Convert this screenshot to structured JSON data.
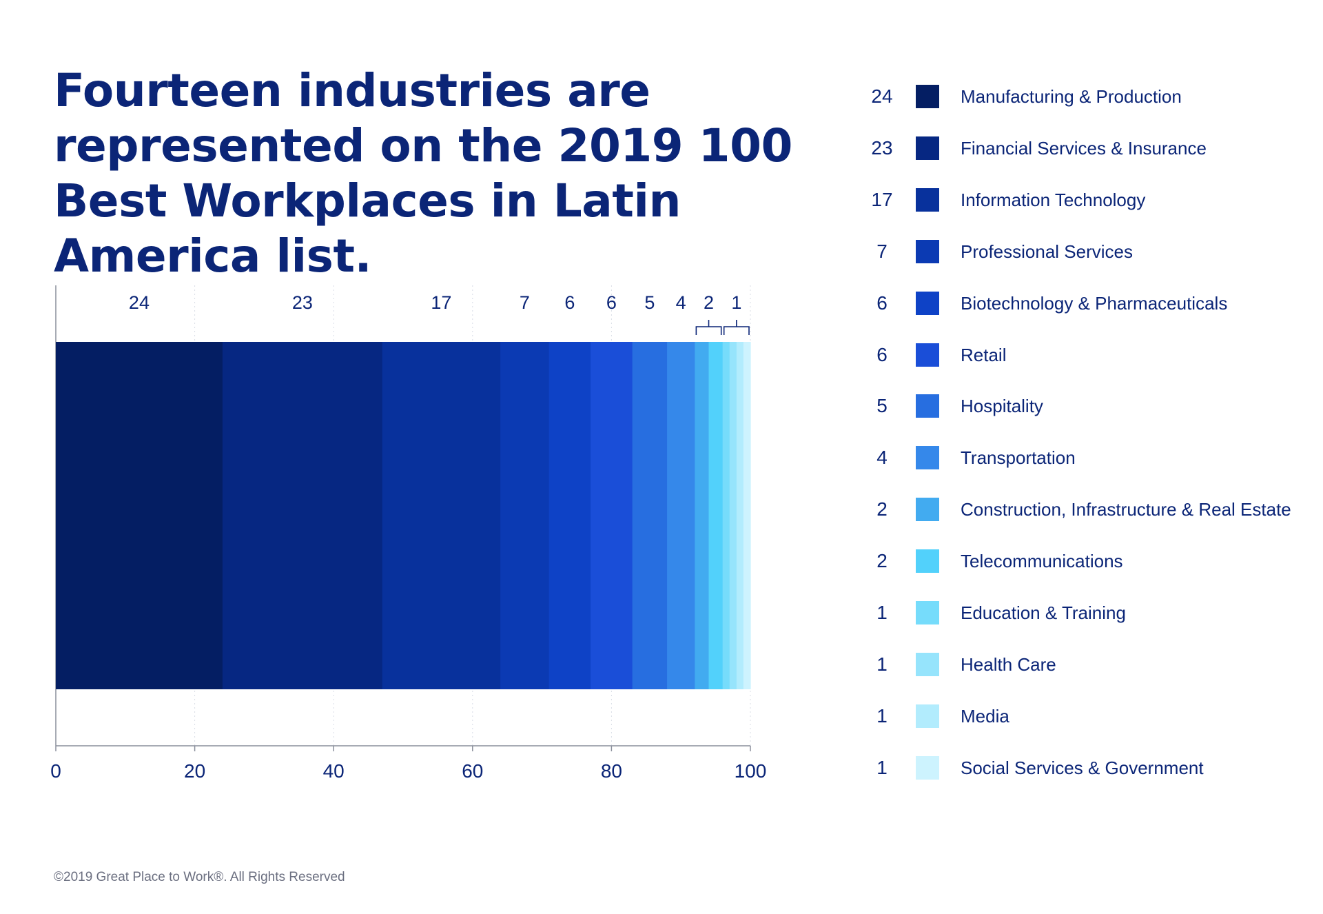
{
  "title": "Fourteen industries are represented on the 2019 100 Best Workplaces in Latin America list.",
  "footer": "©2019 Great Place to Work®. All Rights Reserved",
  "chart_data": {
    "type": "bar",
    "orientation": "horizontal-stacked",
    "series": [
      {
        "name": "Manufacturing & Production",
        "value": 24,
        "color": "#041e63"
      },
      {
        "name": "Financial Services & Insurance",
        "value": 23,
        "color": "#062782"
      },
      {
        "name": "Information Technology",
        "value": 17,
        "color": "#08319c"
      },
      {
        "name": "Professional Services",
        "value": 7,
        "color": "#0b3ab3"
      },
      {
        "name": "Biotechnology & Pharmaceuticals",
        "value": 6,
        "color": "#0e42c6"
      },
      {
        "name": "Retail",
        "value": 6,
        "color": "#1a4ed8"
      },
      {
        "name": "Hospitality",
        "value": 5,
        "color": "#276ee0"
      },
      {
        "name": "Transportation",
        "value": 4,
        "color": "#3588ea"
      },
      {
        "name": "Construction, Infrastructure & Real Estate",
        "value": 2,
        "color": "#42abf0"
      },
      {
        "name": "Telecommunications",
        "value": 2,
        "color": "#52d1fb"
      },
      {
        "name": "Education & Training",
        "value": 1,
        "color": "#76dcfb"
      },
      {
        "name": "Health Care",
        "value": 1,
        "color": "#96e4fc"
      },
      {
        "name": "Media",
        "value": 1,
        "color": "#b2ecfd"
      },
      {
        "name": "Social Services & Government",
        "value": 1,
        "color": "#cdf3fe"
      }
    ],
    "top_labels": [
      "24",
      "23",
      "17",
      "7",
      "6",
      "6",
      "5",
      "4",
      "2",
      "1"
    ],
    "xlim": [
      0,
      100
    ],
    "xticks": [
      0,
      20,
      40,
      60,
      80,
      100
    ],
    "xtick_labels": [
      "0",
      "20",
      "40",
      "60",
      "80",
      "100"
    ],
    "grid": true,
    "legend_placement": "right"
  }
}
